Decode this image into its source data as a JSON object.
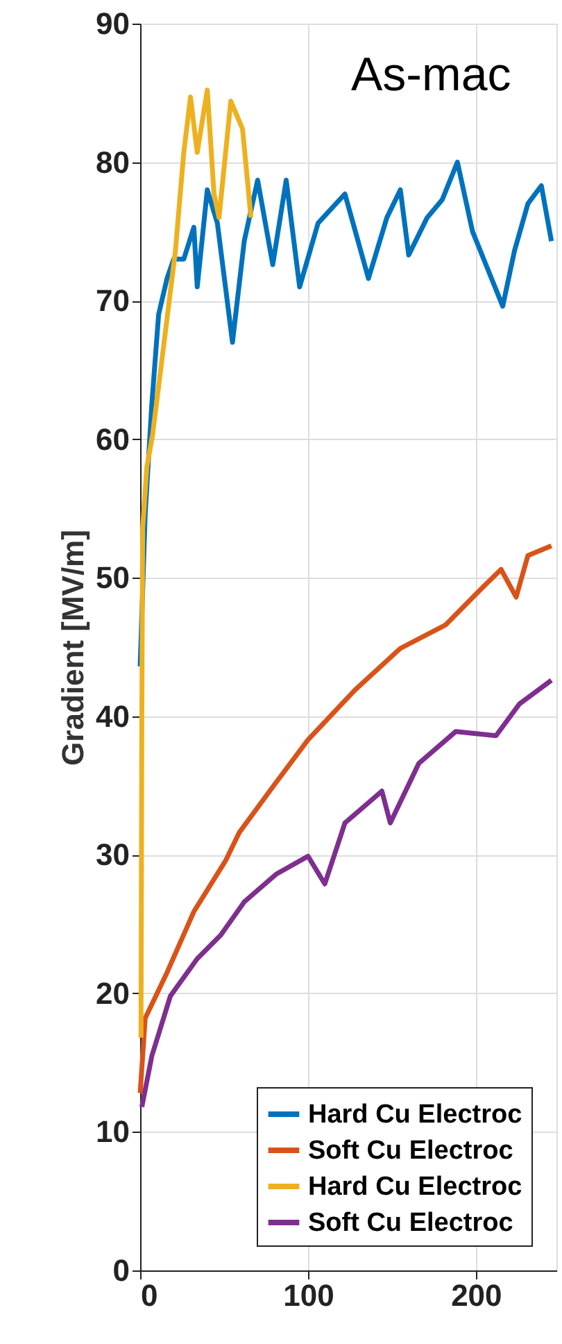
{
  "chart_data": {
    "type": "line",
    "ylabel": "Gradient [MV/m]",
    "annotations": [
      "As-mac"
    ],
    "xlim": [
      0,
      248
    ],
    "xticks": [
      0,
      100,
      200
    ],
    "ylim": [
      0,
      90
    ],
    "yticks": [
      0,
      10,
      20,
      30,
      40,
      50,
      60,
      70,
      80,
      90
    ],
    "grid": true,
    "legend": "bottom right",
    "line_style": "solid",
    "marker": "none",
    "series": [
      {
        "name": "Hard Cu Electroc",
        "color": "#0072bd",
        "x": [
          0,
          3,
          7,
          11,
          16,
          20,
          26,
          32,
          34,
          40,
          46,
          55,
          62,
          70,
          79,
          87,
          95,
          106,
          122,
          136,
          147,
          155,
          160,
          171,
          180,
          189,
          198,
          207,
          216,
          223,
          231,
          239,
          245
        ],
        "values": [
          43.6,
          54.6,
          62.6,
          69,
          71.6,
          73,
          73,
          75.3,
          71,
          78,
          75.6,
          67,
          74.3,
          78.7,
          72.6,
          78.7,
          71,
          75.6,
          77.7,
          71.6,
          76,
          78,
          73.3,
          76,
          77.3,
          80,
          75,
          72.3,
          69.6,
          73.6,
          77,
          78.3,
          74.3
        ]
      },
      {
        "name": "Soft  Cu Electroc",
        "color": "#d95319",
        "x": [
          0,
          3,
          16,
          32,
          51,
          59,
          79,
          100,
          128,
          155,
          182,
          204,
          215,
          224,
          231,
          245
        ],
        "values": [
          12.8,
          18.2,
          21.5,
          25.9,
          29.6,
          31.6,
          34.9,
          38.3,
          41.9,
          44.9,
          46.6,
          49.3,
          50.6,
          48.6,
          51.6,
          52.3
        ]
      },
      {
        "name": "Hard Cu Electroc",
        "color": "#edb120",
        "x": [
          0.5,
          1,
          1.5,
          4,
          7.4,
          15.6,
          21,
          26,
          30,
          34,
          40,
          44,
          47,
          54,
          61,
          66
        ],
        "values": [
          16.8,
          40,
          53.6,
          58,
          60.3,
          68.3,
          73.6,
          80.7,
          84.7,
          80.7,
          85.2,
          77.7,
          76,
          84.4,
          82.4,
          76
        ]
      },
      {
        "name": "Soft  Cu Electroc",
        "color": "#7e2f8e",
        "x": [
          1,
          7,
          18,
          34,
          48,
          62,
          81,
          100,
          110,
          122,
          144,
          149,
          166,
          188,
          212,
          226,
          245
        ],
        "values": [
          11.8,
          15.5,
          19.8,
          22.5,
          24.2,
          26.6,
          28.6,
          29.9,
          27.9,
          32.3,
          34.6,
          32.3,
          36.6,
          38.9,
          38.6,
          40.9,
          42.6
        ]
      }
    ]
  }
}
